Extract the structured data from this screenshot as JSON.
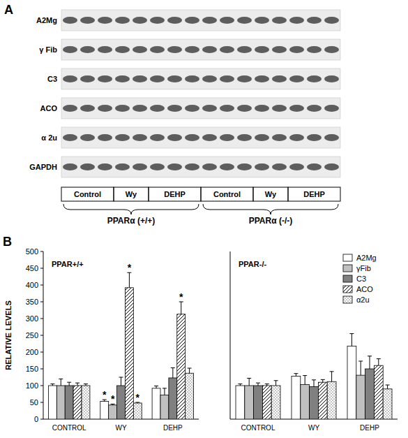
{
  "panel_a": {
    "letter": "A",
    "rows": [
      "A2Mg",
      "γ Fib",
      "C3",
      "ACO",
      "α 2u",
      "GAPDH"
    ],
    "groups": [
      "Control",
      "Wy",
      "DEHP",
      "Control",
      "Wy",
      "DEHP"
    ],
    "genotypes": [
      "PPARα (+/+)",
      "PPARα (-/-)"
    ]
  },
  "panel_b": {
    "letter": "B"
  },
  "chart_data": [
    {
      "type": "bar",
      "title": "PPAR+/+",
      "ylabel": "RELATIVE LEVELS",
      "categories": [
        "CONTROL",
        "WY",
        "DEHP"
      ],
      "ylim": [
        0,
        500
      ],
      "yticks": [
        0,
        50,
        100,
        150,
        200,
        250,
        300,
        350,
        400,
        450,
        500
      ],
      "series": [
        {
          "color": "#ffffff",
          "values": [
            100,
            53,
            92
          ],
          "errors": [
            5,
            5,
            7
          ]
        },
        {
          "color": "#c0c0c0",
          "values": [
            100,
            42,
            72
          ],
          "errors": [
            20,
            3,
            20
          ]
        },
        {
          "color": "#808080",
          "values": [
            100,
            100,
            123
          ],
          "errors": [
            10,
            25,
            30
          ]
        },
        {
          "color": "#ffffff",
          "line_style": "hatch",
          "values": [
            100,
            392,
            313
          ],
          "errors": [
            8,
            45,
            37
          ]
        },
        {
          "color": "#ffffff",
          "line_style": "dots",
          "values": [
            100,
            48,
            137
          ],
          "errors": [
            5,
            2,
            15
          ]
        }
      ],
      "annotations": [
        {
          "series": 0,
          "category": 1,
          "text": "*"
        },
        {
          "series": 1,
          "category": 1,
          "text": "*"
        },
        {
          "series": 3,
          "category": 1,
          "text": "*"
        },
        {
          "series": 4,
          "category": 1,
          "text": "*"
        },
        {
          "series": 3,
          "category": 2,
          "text": "*"
        }
      ]
    },
    {
      "type": "bar",
      "title": "PPAR-/-",
      "legend": "upper right",
      "tick_labels": "x",
      "categories": [
        "CONTROL",
        "WY",
        "DEHP"
      ],
      "ylim": [
        0,
        500
      ],
      "series": [
        {
          "name": "A2Mg",
          "color": "#ffffff",
          "values": [
            100,
            128,
            218
          ],
          "errors": [
            5,
            8,
            37
          ]
        },
        {
          "name": "γFib",
          "color": "#c0c0c0",
          "values": [
            100,
            103,
            131
          ],
          "errors": [
            22,
            27,
            42
          ]
        },
        {
          "name": "C3",
          "color": "#808080",
          "values": [
            100,
            97,
            150
          ],
          "errors": [
            8,
            20,
            38
          ]
        },
        {
          "name": "ACO",
          "color": "#ffffff",
          "line_style": "hatch",
          "values": [
            100,
            110,
            160
          ],
          "errors": [
            5,
            8,
            20
          ]
        },
        {
          "name": "α2u",
          "color": "#ffffff",
          "line_style": "dots",
          "values": [
            100,
            112,
            90
          ],
          "errors": [
            15,
            30,
            12
          ]
        }
      ]
    }
  ]
}
